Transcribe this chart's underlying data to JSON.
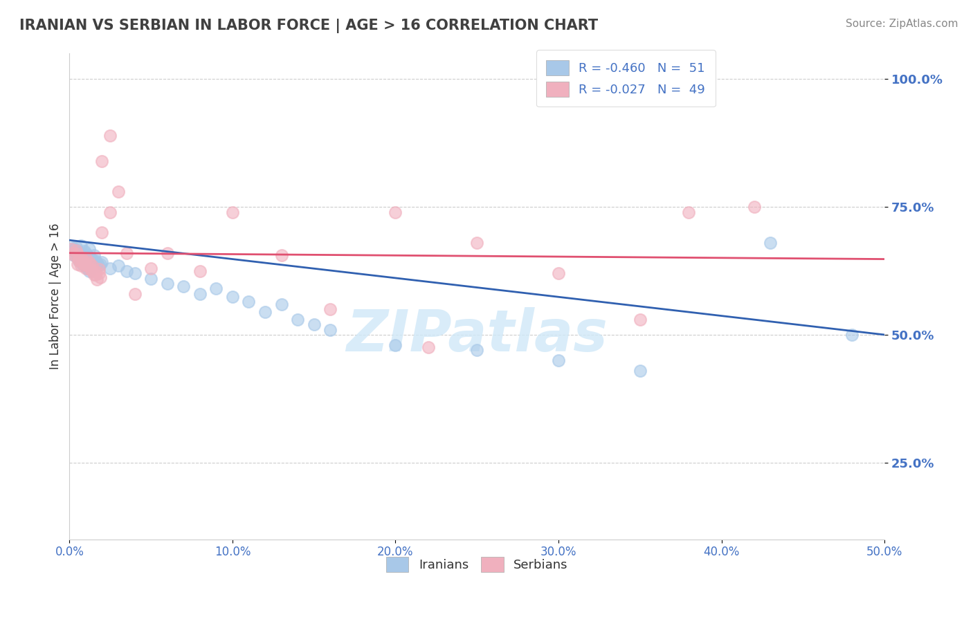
{
  "title": "IRANIAN VS SERBIAN IN LABOR FORCE | AGE > 16 CORRELATION CHART",
  "source": "Source: ZipAtlas.com",
  "ylabel": "In Labor Force | Age > 16",
  "yticks": [
    0.25,
    0.5,
    0.75,
    1.0
  ],
  "ytick_labels": [
    "25.0%",
    "50.0%",
    "75.0%",
    "100.0%"
  ],
  "xticks": [
    0.0,
    0.1,
    0.2,
    0.3,
    0.4,
    0.5
  ],
  "xtick_labels": [
    "0.0%",
    "10.0%",
    "20.0%",
    "30.0%",
    "40.0%",
    "50.0%"
  ],
  "xmin": 0.0,
  "xmax": 0.5,
  "ymin": 0.1,
  "ymax": 1.05,
  "legend_line1": "R = -0.460   N =  51",
  "legend_line2": "R = -0.027   N =  49",
  "legend_labels": [
    "Iranians",
    "Serbians"
  ],
  "iranian_R": -0.46,
  "iranian_N": 51,
  "serbian_R": -0.027,
  "serbian_N": 49,
  "blue_dot_color": "#a8c8e8",
  "pink_dot_color": "#f0b0be",
  "blue_line_color": "#3060b0",
  "pink_line_color": "#e05070",
  "grid_color": "#cccccc",
  "bg_color": "#ffffff",
  "title_color": "#404040",
  "axis_label_color": "#4472c4",
  "watermark": "ZIPatlas",
  "watermark_color": "#d0e8f8",
  "blue_trend_x0": 0.0,
  "blue_trend_y0": 0.685,
  "blue_trend_x1": 0.5,
  "blue_trend_y1": 0.5,
  "pink_trend_x0": 0.0,
  "pink_trend_y0": 0.66,
  "pink_trend_x1": 0.5,
  "pink_trend_y1": 0.648,
  "iranians_x": [
    0.002,
    0.003,
    0.004,
    0.005,
    0.006,
    0.007,
    0.008,
    0.009,
    0.01,
    0.011,
    0.012,
    0.013,
    0.014,
    0.015,
    0.016,
    0.017,
    0.018,
    0.019,
    0.02,
    0.025,
    0.03,
    0.035,
    0.04,
    0.05,
    0.06,
    0.07,
    0.08,
    0.09,
    0.1,
    0.11,
    0.12,
    0.13,
    0.14,
    0.15,
    0.16,
    0.003,
    0.004,
    0.005,
    0.006,
    0.007,
    0.008,
    0.009,
    0.01,
    0.011,
    0.012,
    0.2,
    0.25,
    0.3,
    0.35,
    0.43,
    0.48
  ],
  "iranians_y": [
    0.67,
    0.668,
    0.672,
    0.665,
    0.66,
    0.675,
    0.658,
    0.663,
    0.66,
    0.655,
    0.668,
    0.65,
    0.648,
    0.655,
    0.645,
    0.64,
    0.635,
    0.638,
    0.642,
    0.63,
    0.635,
    0.625,
    0.62,
    0.61,
    0.6,
    0.595,
    0.58,
    0.59,
    0.575,
    0.565,
    0.545,
    0.56,
    0.53,
    0.52,
    0.51,
    0.655,
    0.66,
    0.65,
    0.645,
    0.648,
    0.638,
    0.642,
    0.635,
    0.63,
    0.625,
    0.48,
    0.47,
    0.45,
    0.43,
    0.68,
    0.5
  ],
  "serbians_x": [
    0.001,
    0.002,
    0.003,
    0.004,
    0.005,
    0.006,
    0.007,
    0.008,
    0.009,
    0.01,
    0.011,
    0.012,
    0.013,
    0.014,
    0.015,
    0.016,
    0.017,
    0.018,
    0.019,
    0.02,
    0.025,
    0.03,
    0.035,
    0.04,
    0.05,
    0.06,
    0.08,
    0.1,
    0.13,
    0.16,
    0.2,
    0.25,
    0.3,
    0.35,
    0.005,
    0.006,
    0.007,
    0.008,
    0.009,
    0.01,
    0.012,
    0.014,
    0.016,
    0.018,
    0.38,
    0.42,
    0.02,
    0.025,
    0.22
  ],
  "serbians_y": [
    0.668,
    0.66,
    0.655,
    0.665,
    0.658,
    0.648,
    0.652,
    0.645,
    0.638,
    0.65,
    0.635,
    0.642,
    0.628,
    0.635,
    0.618,
    0.625,
    0.608,
    0.62,
    0.612,
    0.84,
    0.89,
    0.78,
    0.66,
    0.58,
    0.63,
    0.66,
    0.625,
    0.74,
    0.655,
    0.55,
    0.74,
    0.68,
    0.62,
    0.53,
    0.638,
    0.645,
    0.635,
    0.648,
    0.64,
    0.63,
    0.638,
    0.625,
    0.618,
    0.628,
    0.74,
    0.75,
    0.7,
    0.74,
    0.475
  ]
}
